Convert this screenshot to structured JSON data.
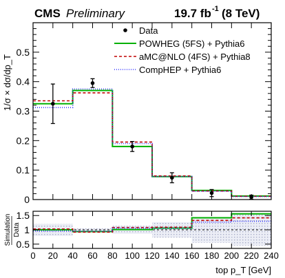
{
  "header": {
    "experiment": "CMS",
    "status": "Preliminary",
    "lumi": "19.7 fb",
    "lumi_exp": "-1",
    "energy": "(8 TeV)"
  },
  "chart_data": [
    {
      "type": "line",
      "panel": "main",
      "ylabel": "1/σ × dσ/dp_T",
      "ylim": [
        0,
        0.6
      ],
      "yticks": [
        0,
        0.1,
        0.2,
        0.3,
        0.4,
        0.5
      ],
      "ytick_labels": [
        "0",
        "0.1",
        "0.2",
        "0.3",
        "0.4",
        "0.5"
      ],
      "bin_edges": [
        0,
        40,
        80,
        120,
        160,
        200,
        240
      ],
      "data": {
        "name": "Data",
        "x": [
          20,
          60,
          100,
          140,
          180,
          220
        ],
        "y": [
          0.325,
          0.395,
          0.18,
          0.074,
          0.022,
          0.008
        ],
        "yerr": [
          0.067,
          0.015,
          0.017,
          0.017,
          0.012,
          0.007
        ]
      },
      "series": [
        {
          "name": "POWHEG (5FS) + Pythia6",
          "color": "#00b000",
          "dash": "solid",
          "values": [
            0.325,
            0.37,
            0.18,
            0.078,
            0.031,
            0.012
          ]
        },
        {
          "name": "aMC@NLO (4FS) + Pythia8",
          "color": "#c00000",
          "dash": "4,3",
          "values": [
            0.335,
            0.362,
            0.195,
            0.08,
            0.029,
            0.011
          ]
        },
        {
          "name": "CompHEP + Pythia6",
          "color": "#3333ff",
          "dash": "1,2",
          "values": [
            0.312,
            0.375,
            0.19,
            0.078,
            0.028,
            0.01
          ]
        }
      ],
      "legend": "top-right"
    },
    {
      "type": "line",
      "panel": "ratio",
      "ylabel_top": "Simulation",
      "ylabel_bottom": "Data",
      "xlabel": "top p_T [GeV]",
      "ylim": [
        0.35,
        1.65
      ],
      "yticks": [
        0.5,
        1,
        1.5
      ],
      "ytick_labels": [
        "0.5",
        "1",
        "1.5"
      ],
      "xlim": [
        0,
        240
      ],
      "xticks": [
        0,
        20,
        40,
        60,
        80,
        100,
        120,
        140,
        160,
        180,
        200,
        220,
        240
      ],
      "xtick_labels": [
        "0",
        "20",
        "40",
        "60",
        "80",
        "100",
        "120",
        "140",
        "160",
        "180",
        "200",
        "220",
        "240"
      ],
      "bin_edges": [
        0,
        40,
        80,
        120,
        160,
        200,
        240
      ],
      "uncertainty_band": {
        "low": [
          0.79,
          0.95,
          0.86,
          0.73,
          0.55,
          0.45
        ],
        "high": [
          1.21,
          1.05,
          1.14,
          1.27,
          1.45,
          1.55
        ]
      },
      "series": [
        {
          "name": "POWHEG (5FS) + Pythia6",
          "color": "#00b000",
          "dash": "solid",
          "values": [
            1.0,
            0.94,
            1.01,
            1.06,
            1.42,
            1.56
          ]
        },
        {
          "name": "aMC@NLO (4FS) + Pythia8",
          "color": "#c00000",
          "dash": "4,3",
          "values": [
            1.03,
            0.92,
            1.08,
            1.09,
            1.33,
            1.42
          ]
        },
        {
          "name": "CompHEP + Pythia6",
          "color": "#3333ff",
          "dash": "1,2",
          "values": [
            0.96,
            0.95,
            1.06,
            1.06,
            1.27,
            1.3
          ]
        }
      ]
    }
  ]
}
